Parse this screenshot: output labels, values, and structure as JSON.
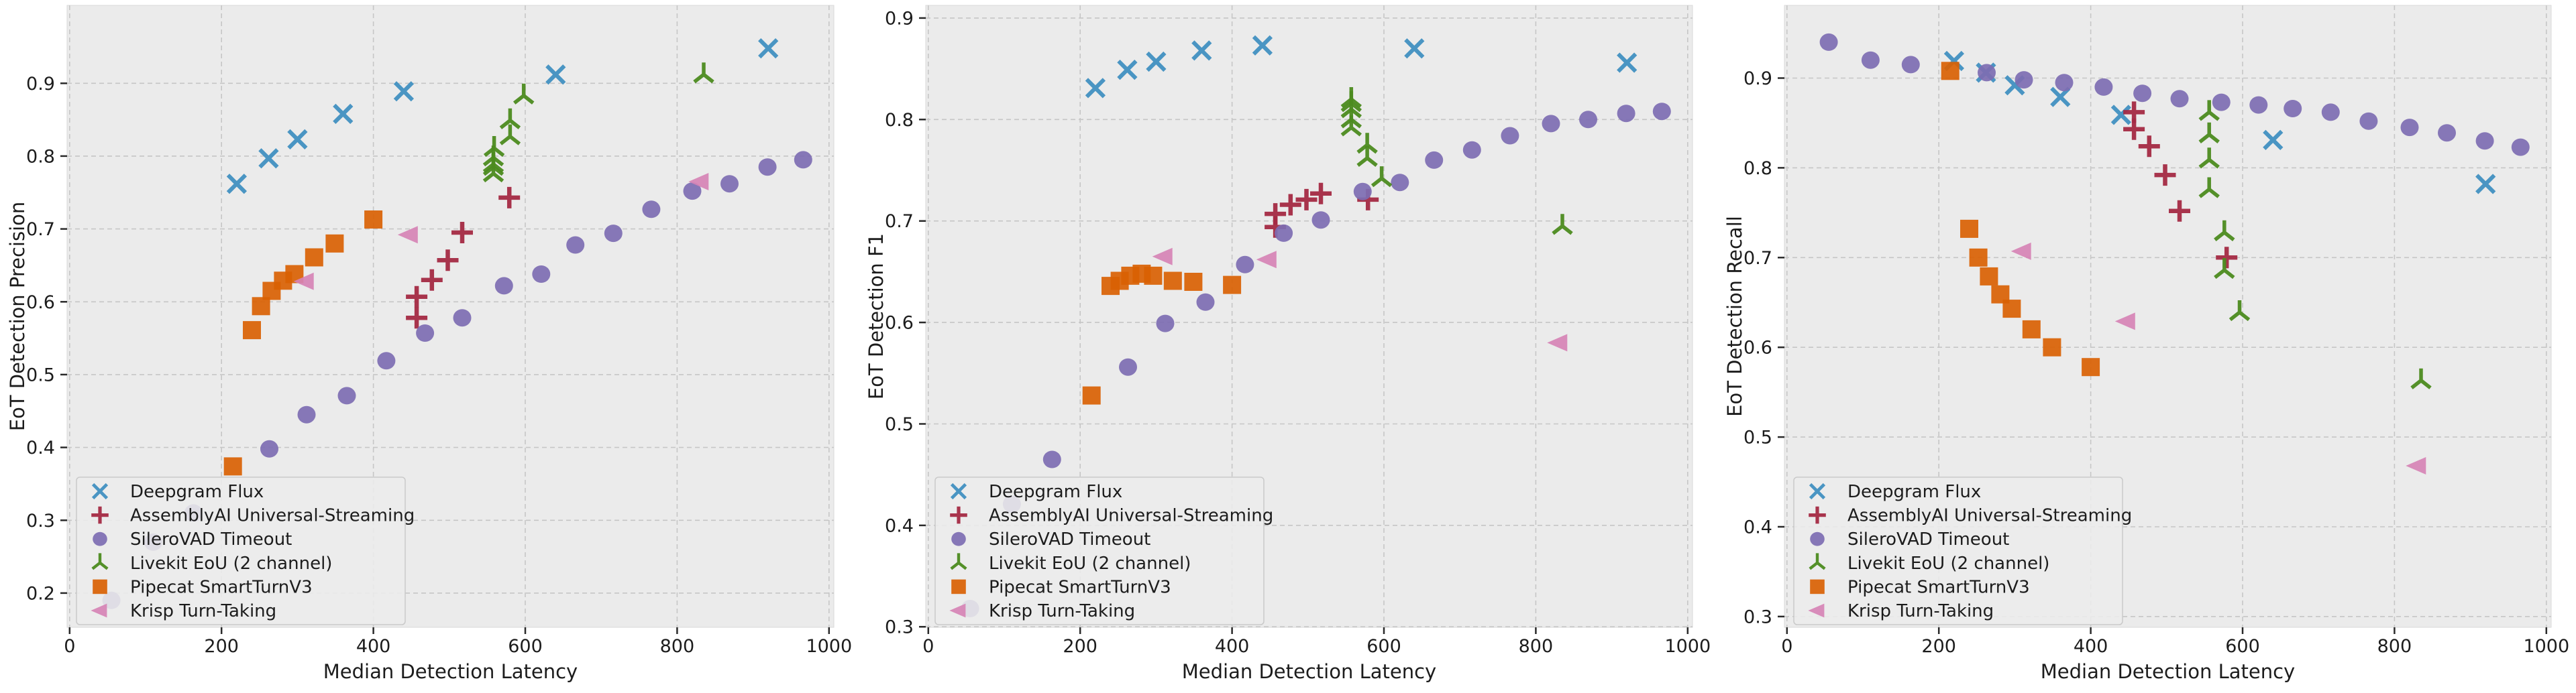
{
  "figure": {
    "background": "#ffffff",
    "plot_background": "#ebebeb",
    "plot_border_color": "#dadada",
    "grid_color": "#c6c6c6",
    "tick_mark_color": "#2a2a2a",
    "text_color": "#1c1c1c",
    "legend_background": "#ececec",
    "legend_border_color": "#c9c9c9",
    "legend_position": "lower-left"
  },
  "chart_data": {
    "type": "scatter",
    "xlabel": "Median Detection Latency",
    "xticks": [
      0,
      200,
      400,
      600,
      800,
      1000
    ],
    "xlim": [
      -3.4,
      1006.4
    ],
    "grid": "dashed",
    "series_meta": [
      {
        "name": "Deepgram Flux",
        "marker": "x",
        "color": "#4190c1"
      },
      {
        "name": "AssemblyAI Universal-Streaming",
        "marker": "plus",
        "color": "#a42a43"
      },
      {
        "name": "SileroVAD Timeout",
        "marker": "circle",
        "color": "#7d6cb2"
      },
      {
        "name": "Livekit EoU (2 channel)",
        "marker": "tri-down",
        "color": "#4c8b1f"
      },
      {
        "name": "Pipecat SmartTurnV3",
        "marker": "square",
        "color": "#d96103"
      },
      {
        "name": "Krisp Turn-Taking",
        "marker": "triangle-left",
        "color": "#d683b5"
      }
    ],
    "panels": [
      {
        "id": "precision",
        "ylabel": "EoT Detection Precision",
        "ylim": [
          0.153,
          1.007
        ],
        "yticks": [
          0.2,
          0.3,
          0.4,
          0.5,
          0.6,
          0.7,
          0.8,
          0.9
        ],
        "points": [
          [
            [
              220,
              0.762
            ],
            [
              262,
              0.797
            ],
            [
              300,
              0.823
            ],
            [
              360,
              0.858
            ],
            [
              440,
              0.889
            ],
            [
              640,
              0.912
            ],
            [
              920,
              0.948
            ]
          ],
          [
            [
              457,
              0.578
            ],
            [
              457,
              0.607
            ],
            [
              477,
              0.63
            ],
            [
              498,
              0.657
            ],
            [
              517,
              0.695
            ],
            [
              579,
              0.743
            ]
          ],
          [
            [
              55,
              0.19
            ],
            [
              110,
              0.27
            ],
            [
              163,
              0.31
            ],
            [
              263,
              0.398
            ],
            [
              312,
              0.445
            ],
            [
              365,
              0.471
            ],
            [
              417,
              0.519
            ],
            [
              468,
              0.557
            ],
            [
              517,
              0.578
            ],
            [
              572,
              0.622
            ],
            [
              621,
              0.638
            ],
            [
              666,
              0.678
            ],
            [
              716,
              0.694
            ],
            [
              766,
              0.727
            ],
            [
              820,
              0.752
            ],
            [
              869,
              0.762
            ],
            [
              919,
              0.785
            ],
            [
              966,
              0.795
            ]
          ],
          [
            [
              558,
              0.776
            ],
            [
              558,
              0.785
            ],
            [
              558,
              0.789
            ],
            [
              558,
              0.798
            ],
            [
              559,
              0.811
            ],
            [
              580,
              0.827
            ],
            [
              580,
              0.849
            ],
            [
              598,
              0.883
            ],
            [
              835,
              0.912
            ]
          ],
          [
            [
              215,
              0.374
            ],
            [
              240,
              0.561
            ],
            [
              252,
              0.594
            ],
            [
              266,
              0.615
            ],
            [
              281,
              0.629
            ],
            [
              296,
              0.638
            ],
            [
              322,
              0.661
            ],
            [
              349,
              0.68
            ],
            [
              400,
              0.713
            ]
          ],
          [
            [
              310,
              0.628
            ],
            [
              447,
              0.692
            ],
            [
              830,
              0.765
            ]
          ]
        ]
      },
      {
        "id": "f1",
        "ylabel": "EoT Detection F1",
        "ylim": [
          0.2995,
          0.9125
        ],
        "yticks": [
          0.3,
          0.4,
          0.5,
          0.6,
          0.7,
          0.8,
          0.9
        ],
        "points": [
          [
            [
              220,
              0.831
            ],
            [
              262,
              0.849
            ],
            [
              300,
              0.857
            ],
            [
              360,
              0.868
            ],
            [
              440,
              0.873
            ],
            [
              640,
              0.87
            ],
            [
              920,
              0.856
            ]
          ],
          [
            [
              457,
              0.694
            ],
            [
              457,
              0.707
            ],
            [
              477,
              0.716
            ],
            [
              498,
              0.721
            ],
            [
              517,
              0.727
            ],
            [
              579,
              0.721
            ]
          ],
          [
            [
              55,
              0.318
            ],
            [
              110,
              0.421
            ],
            [
              163,
              0.465
            ],
            [
              263,
              0.556
            ],
            [
              312,
              0.599
            ],
            [
              365,
              0.62
            ],
            [
              417,
              0.657
            ],
            [
              468,
              0.688
            ],
            [
              517,
              0.701
            ],
            [
              572,
              0.729
            ],
            [
              621,
              0.738
            ],
            [
              666,
              0.76
            ],
            [
              716,
              0.77
            ],
            [
              766,
              0.784
            ],
            [
              820,
              0.796
            ],
            [
              869,
              0.8
            ],
            [
              919,
              0.806
            ],
            [
              966,
              0.808
            ]
          ],
          [
            [
              557,
              0.82
            ],
            [
              557,
              0.816
            ],
            [
              557,
              0.81
            ],
            [
              557,
              0.8
            ],
            [
              557,
              0.792
            ],
            [
              578,
              0.775
            ],
            [
              578,
              0.762
            ],
            [
              597,
              0.742
            ],
            [
              835,
              0.695
            ]
          ],
          [
            [
              215,
              0.528
            ],
            [
              240,
              0.636
            ],
            [
              252,
              0.641
            ],
            [
              266,
              0.646
            ],
            [
              281,
              0.648
            ],
            [
              296,
              0.646
            ],
            [
              322,
              0.641
            ],
            [
              349,
              0.64
            ],
            [
              400,
              0.637
            ]
          ],
          [
            [
              310,
              0.665
            ],
            [
              447,
              0.662
            ],
            [
              830,
              0.58
            ]
          ]
        ]
      },
      {
        "id": "recall",
        "ylabel": "EoT Detection Recall",
        "ylim": [
          0.288,
          0.981
        ],
        "yticks": [
          0.3,
          0.4,
          0.5,
          0.6,
          0.7,
          0.8,
          0.9
        ],
        "points": [
          [
            [
              220,
              0.919
            ],
            [
              262,
              0.906
            ],
            [
              300,
              0.892
            ],
            [
              360,
              0.879
            ],
            [
              440,
              0.859
            ],
            [
              640,
              0.831
            ],
            [
              920,
              0.782
            ]
          ],
          [
            [
              457,
              0.862
            ],
            [
              457,
              0.843
            ],
            [
              477,
              0.824
            ],
            [
              498,
              0.792
            ],
            [
              517,
              0.752
            ],
            [
              579,
              0.7
            ]
          ],
          [
            [
              55,
              0.94
            ],
            [
              110,
              0.92
            ],
            [
              163,
              0.915
            ],
            [
              263,
              0.906
            ],
            [
              312,
              0.898
            ],
            [
              365,
              0.895
            ],
            [
              417,
              0.89
            ],
            [
              468,
              0.883
            ],
            [
              517,
              0.877
            ],
            [
              572,
              0.873
            ],
            [
              621,
              0.87
            ],
            [
              666,
              0.866
            ],
            [
              716,
              0.862
            ],
            [
              766,
              0.852
            ],
            [
              820,
              0.845
            ],
            [
              869,
              0.839
            ],
            [
              919,
              0.83
            ],
            [
              966,
              0.823
            ]
          ],
          [
            [
              556,
              0.862
            ],
            [
              556,
              0.837
            ],
            [
              556,
              0.809
            ],
            [
              556,
              0.776
            ],
            [
              576,
              0.728
            ],
            [
              576,
              0.686
            ],
            [
              596,
              0.639
            ],
            [
              835,
              0.563
            ]
          ],
          [
            [
              215,
              0.908
            ],
            [
              240,
              0.732
            ],
            [
              252,
              0.7
            ],
            [
              266,
              0.679
            ],
            [
              281,
              0.659
            ],
            [
              296,
              0.643
            ],
            [
              322,
              0.62
            ],
            [
              349,
              0.6
            ],
            [
              400,
              0.578
            ]
          ],
          [
            [
              310,
              0.707
            ],
            [
              447,
              0.629
            ],
            [
              830,
              0.468
            ]
          ]
        ]
      }
    ]
  }
}
